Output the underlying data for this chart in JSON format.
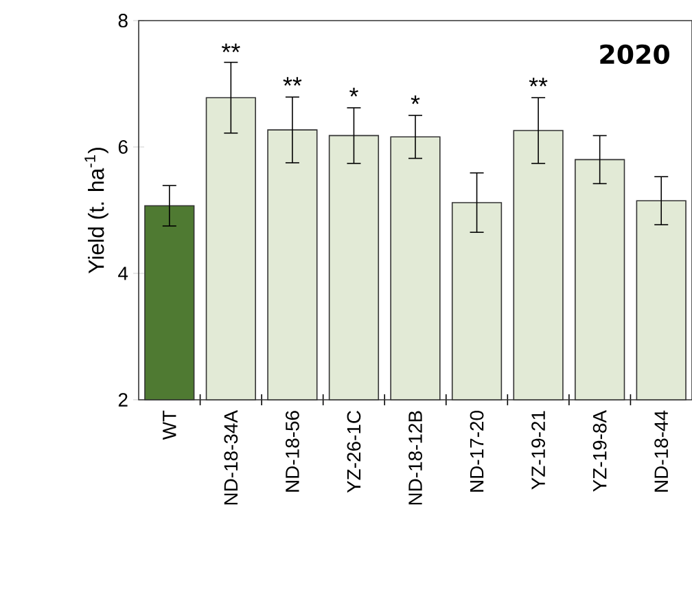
{
  "chart_data": {
    "type": "bar",
    "title": "2020",
    "ylabel": "Yield (t. ha$^{-1}$)",
    "categories": [
      "WT",
      "ND-18-34A",
      "ND-18-56",
      "YZ-26-1C",
      "ND-18-12B",
      "ND-17-20",
      "YZ-19-21",
      "YZ-19-8A",
      "ND-18-44"
    ],
    "values": [
      5.07,
      6.78,
      6.27,
      6.18,
      6.16,
      5.12,
      6.26,
      5.8,
      5.15
    ],
    "errors": [
      0.32,
      0.56,
      0.52,
      0.44,
      0.34,
      0.47,
      0.52,
      0.38,
      0.38
    ],
    "colors": [
      "#4f7a32",
      "#e2ead6",
      "#e2ead6",
      "#e2ead6",
      "#e2ead6",
      "#e2ead6",
      "#e2ead6",
      "#e2ead6",
      "#e2ead6"
    ],
    "ylim": [
      2,
      8
    ],
    "yticks": [
      2,
      4,
      6,
      8
    ],
    "annotations": [
      {
        "text": "**",
        "x": "ND-18-34A",
        "y": 7.32
      },
      {
        "text": "**",
        "x": "ND-18-56",
        "y": 6.79
      },
      {
        "text": "*",
        "x": "YZ-26-1C",
        "y": 6.62
      },
      {
        "text": "*",
        "x": "ND-18-12B",
        "y": 6.5
      },
      {
        "text": "**",
        "x": "YZ-19-21",
        "y": 6.78
      }
    ]
  }
}
